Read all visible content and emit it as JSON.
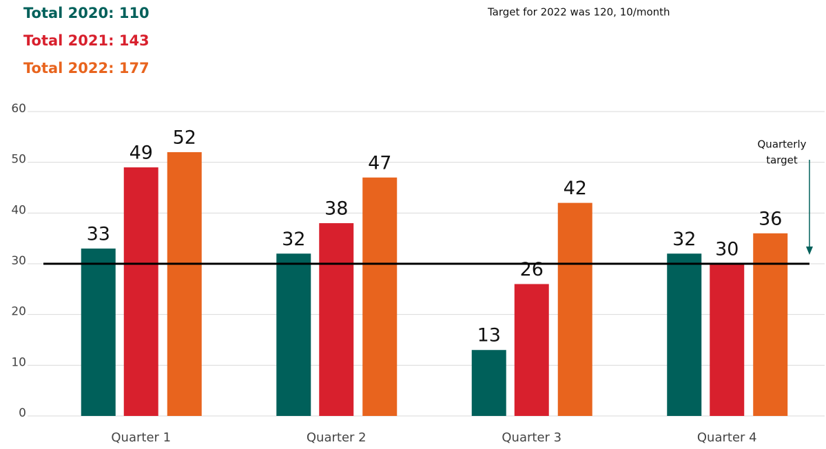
{
  "chart_data": {
    "type": "bar",
    "totals": [
      "Total 2020:  110",
      "Total 2021:  143",
      "Total 2022:  177"
    ],
    "subtitle": "Target for 2022 was 120, 10/month",
    "categories": [
      "Quarter 1",
      "Quarter 2",
      "Quarter 3",
      "Quarter 4"
    ],
    "series": [
      {
        "color": "#00605a",
        "values": [
          33,
          32,
          13,
          32
        ]
      },
      {
        "color": "#d8202d",
        "values": [
          49,
          38,
          26,
          30
        ]
      },
      {
        "color": "#e8641e",
        "values": [
          52,
          47,
          42,
          36
        ]
      }
    ],
    "target_line": 30,
    "target_annotation": [
      "Quarterly",
      "target"
    ],
    "ylim": [
      0,
      60
    ],
    "yticks": [
      0,
      10,
      20,
      30,
      40,
      50,
      60
    ],
    "grid": true
  }
}
